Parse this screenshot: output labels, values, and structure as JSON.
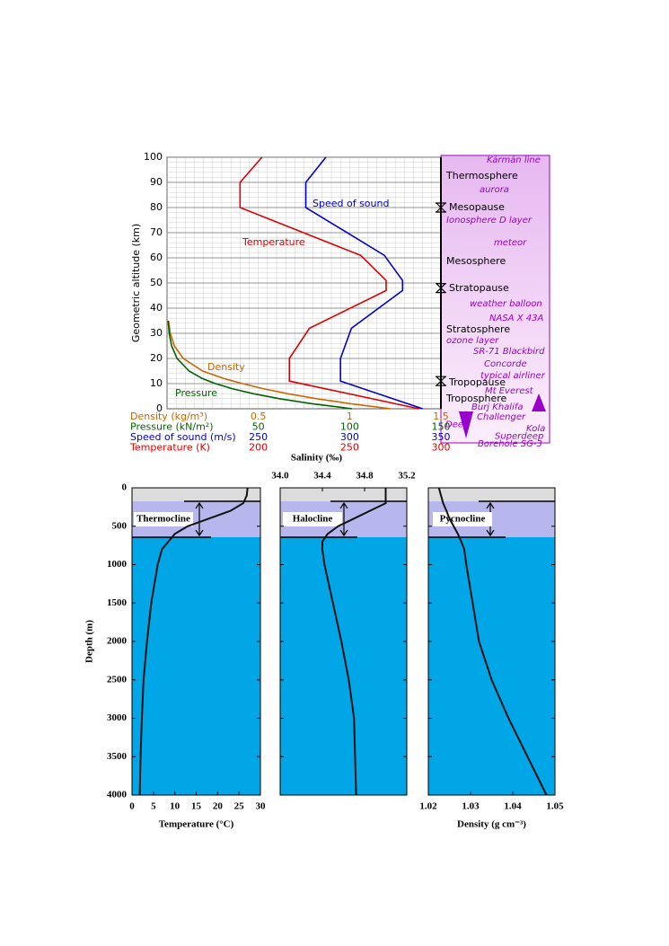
{
  "chart_data": [
    {
      "type": "line",
      "y_label": "Geometric altitude (km)",
      "ylim": [
        0,
        100
      ],
      "yticks": [
        0,
        10,
        20,
        30,
        40,
        50,
        60,
        70,
        80,
        90,
        100
      ],
      "grid": true,
      "series": [
        {
          "name": "Density",
          "axis_label": "Density (kg/m³)",
          "color": "#cc6600",
          "xlim": [
            0,
            1.5
          ],
          "xticks": [
            0.5,
            1,
            1.5
          ],
          "values": [
            1.225,
            1.007,
            0.819,
            0.66,
            0.526,
            0.414,
            0.312,
            0.195,
            0.089,
            0.04,
            0.018,
            0.008
          ],
          "altitudes": [
            0,
            2,
            4,
            6,
            8,
            10,
            12,
            15,
            20,
            25,
            30,
            35
          ]
        },
        {
          "name": "Pressure",
          "axis_label": "Pressure (kN/m²)",
          "color": "#006400",
          "xlim": [
            0,
            150
          ],
          "xticks": [
            50,
            100,
            150
          ],
          "values": [
            101.3,
            79.5,
            61.6,
            47.2,
            35.6,
            26.5,
            19.4,
            12.1,
            5.5,
            2.5,
            1.2,
            0.6
          ],
          "altitudes": [
            0,
            2,
            4,
            6,
            8,
            10,
            12,
            15,
            20,
            25,
            30,
            35
          ]
        },
        {
          "name": "Speed of sound",
          "axis_label": "Speed of sound (m/s)",
          "color": "#0000cc",
          "xlim": [
            200,
            350
          ],
          "xticks": [
            250,
            300,
            350
          ],
          "values": [
            340,
            295,
            295,
            301,
            329,
            329,
            319,
            276,
            276,
            287
          ],
          "altitudes": [
            0,
            11,
            20,
            32,
            47,
            51,
            61,
            80,
            90,
            100
          ]
        },
        {
          "name": "Temperature",
          "axis_label": "Temperature (K)",
          "color": "#dd0000",
          "xlim": [
            150,
            300
          ],
          "xticks": [
            200,
            250,
            300
          ],
          "values": [
            288,
            217,
            217,
            228,
            270,
            270,
            256,
            190,
            190,
            202
          ],
          "altitudes": [
            0,
            11,
            20,
            32,
            47,
            51,
            61,
            80,
            90,
            100
          ]
        }
      ],
      "layers": [
        "Thermosphere",
        "Mesopause",
        "Mesosphere",
        "Stratopause",
        "Stratosphere",
        "Tropopause",
        "Troposphere"
      ],
      "annotations": [
        "Kármán line",
        "aurora",
        "Ionosphere D layer",
        "meteor",
        "weather balloon",
        "NASA X 43A",
        "ozone layer",
        "SR-71 Blackbird",
        "Concorde",
        "typical airliner",
        "Mt Everest",
        "Burj Khalifa",
        [
          "Challenger",
          "Deep"
        ],
        [
          "Kola",
          "Superdeep",
          "Borehole SG-3"
        ]
      ]
    },
    {
      "type": "line",
      "y_label": "Depth (m)",
      "ylim": [
        0,
        4000
      ],
      "y_inverted": true,
      "yticks": [
        0,
        500,
        1000,
        1500,
        2000,
        2500,
        3000,
        3500,
        4000
      ],
      "depths": [
        0,
        100,
        200,
        300,
        400,
        500,
        600,
        700,
        800,
        1000,
        1500,
        2000,
        2500,
        3000,
        3500,
        4000
      ],
      "panels": [
        {
          "name": "Thermocline",
          "x_label": "Temperature (°C)",
          "x_axis": "bottom",
          "xlim": [
            0,
            30
          ],
          "xticks": [
            0,
            5,
            10,
            15,
            20,
            25,
            30
          ],
          "values": [
            27,
            26.8,
            26,
            23,
            18,
            13,
            10,
            8.5,
            7,
            6,
            4.5,
            3.5,
            2.7,
            2.3,
            2.0,
            1.8
          ]
        },
        {
          "name": "Halocline",
          "x_label": "Salinity (‰)",
          "x_axis": "top",
          "xlim": [
            34.0,
            35.2
          ],
          "xticks": [
            {
              "value": 34.0,
              "label": "34.0"
            },
            34.4,
            34.8,
            35.2
          ],
          "values": [
            35.0,
            35.0,
            35.0,
            34.85,
            34.7,
            34.55,
            34.45,
            34.4,
            34.4,
            34.42,
            34.5,
            34.58,
            34.65,
            34.7,
            34.71,
            34.72
          ]
        },
        {
          "name": "Pycnocline",
          "x_label": "Density (g cm⁻³)",
          "x_axis": "bottom",
          "xlim": [
            1.02,
            1.05
          ],
          "xticks": [
            1.02,
            1.03,
            1.04,
            1.05
          ],
          "values": [
            1.0225,
            1.023,
            1.0235,
            1.0243,
            1.025,
            1.026,
            1.027,
            1.0278,
            1.0285,
            1.029,
            1.0305,
            1.032,
            1.035,
            1.039,
            1.0435,
            1.048
          ]
        }
      ]
    }
  ]
}
